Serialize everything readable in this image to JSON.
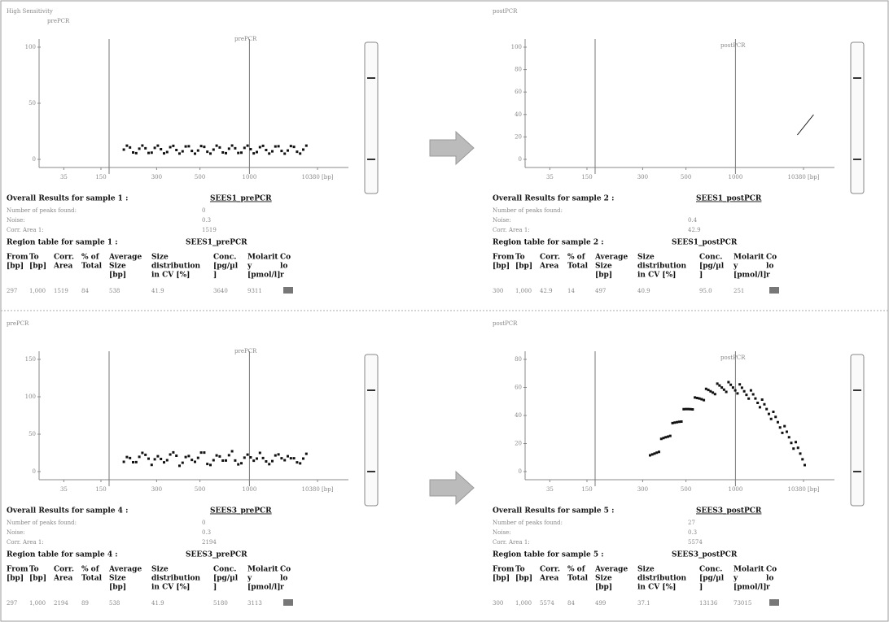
{
  "region_header": [
    [
      "From",
      "[bp]"
    ],
    [
      "To",
      "[bp]"
    ],
    [
      "Corr.",
      "Area"
    ],
    [
      "% of",
      "Total"
    ],
    [
      "Average",
      "Size",
      "[bp]"
    ],
    [
      "Size",
      "distribution",
      "in CV [%]"
    ],
    [
      "Conc.",
      "[pg/µl",
      "]"
    ],
    [
      "Molarit",
      "y",
      "[pmol/l]"
    ],
    [
      "Co",
      "lo",
      "r"
    ]
  ],
  "panels": [
    {
      "heading": [
        "High Sensitivity",
        "prePCR"
      ],
      "plot_label": "prePCR",
      "y_ticks": [
        "100",
        "50",
        "0"
      ],
      "x_ticks": [
        "35",
        "150",
        "300",
        "500",
        "1000",
        "10380 [bp]"
      ],
      "overall": {
        "title": "Overall Results for sample 1 :",
        "sample": "SEES1_prePCR",
        "rows": [
          [
            "Number of peaks found:",
            "0"
          ],
          [
            "Noise:",
            "0.3"
          ],
          [
            "Corr. Area 1:",
            "1519"
          ]
        ]
      },
      "region": {
        "title": "Region table for sample 1 :",
        "sample": "SEES1_prePCR",
        "row": [
          "297",
          "1,000",
          "1519",
          "84",
          "538",
          "41.9",
          "3640",
          "9311"
        ]
      }
    },
    {
      "heading": [
        "postPCR"
      ],
      "plot_label": "postPCR",
      "y_ticks": [
        "100",
        "80",
        "60",
        "40",
        "20",
        "0"
      ],
      "x_ticks": [
        "35",
        "150",
        "300",
        "500",
        "1000",
        "10380 [bp]"
      ],
      "overall": {
        "title": "Overall Results for sample 2 :",
        "sample": "SEES1_postPCR",
        "rows": [
          [
            "Number of peaks found:",
            ""
          ],
          [
            "Noise:",
            "0.4"
          ],
          [
            "Corr. Area 1:",
            "42.9"
          ]
        ]
      },
      "region": {
        "title": "Region table for sample 2 :",
        "sample": "SEES1_postPCR",
        "row": [
          "300",
          "1,000",
          "42.9",
          "14",
          "497",
          "40.9",
          "95.0",
          "251"
        ]
      }
    },
    {
      "heading": [
        "prePCR"
      ],
      "plot_label": "prePCR",
      "y_ticks": [
        "150",
        "100",
        "50",
        "0"
      ],
      "x_ticks": [
        "35",
        "150",
        "300",
        "500",
        "1000",
        "10380 [bp]"
      ],
      "overall": {
        "title": "Overall Results for sample 4 :",
        "sample": "SEES3_prePCR",
        "rows": [
          [
            "Number of peaks found:",
            "0"
          ],
          [
            "Noise:",
            "0.3"
          ],
          [
            "Corr. Area 1:",
            "2194"
          ]
        ]
      },
      "region": {
        "title": "Region table for sample 4 :",
        "sample": "SEES3_prePCR",
        "row": [
          "297",
          "1,000",
          "2194",
          "89",
          "538",
          "41.9",
          "5180",
          "3113"
        ]
      }
    },
    {
      "heading": [
        "postPCR"
      ],
      "plot_label": "postPCR",
      "y_ticks": [
        "80",
        "60",
        "40",
        "20",
        "0"
      ],
      "x_ticks": [
        "35",
        "150",
        "300",
        "500",
        "1000",
        "10380 [bp]"
      ],
      "overall": {
        "title": "Overall Results for sample 5 :",
        "sample": "SEES3_postPCR",
        "rows": [
          [
            "Number of peaks found:",
            "27"
          ],
          [
            "Noise:",
            "0.3"
          ],
          [
            "Corr. Area 1:",
            "5574"
          ]
        ]
      },
      "region": {
        "title": "Region table for sample 5 :",
        "sample": "SEES3_postPCR",
        "row": [
          "300",
          "1,000",
          "5574",
          "84",
          "499",
          "37.1",
          "13136",
          "73015"
        ]
      }
    }
  ]
}
